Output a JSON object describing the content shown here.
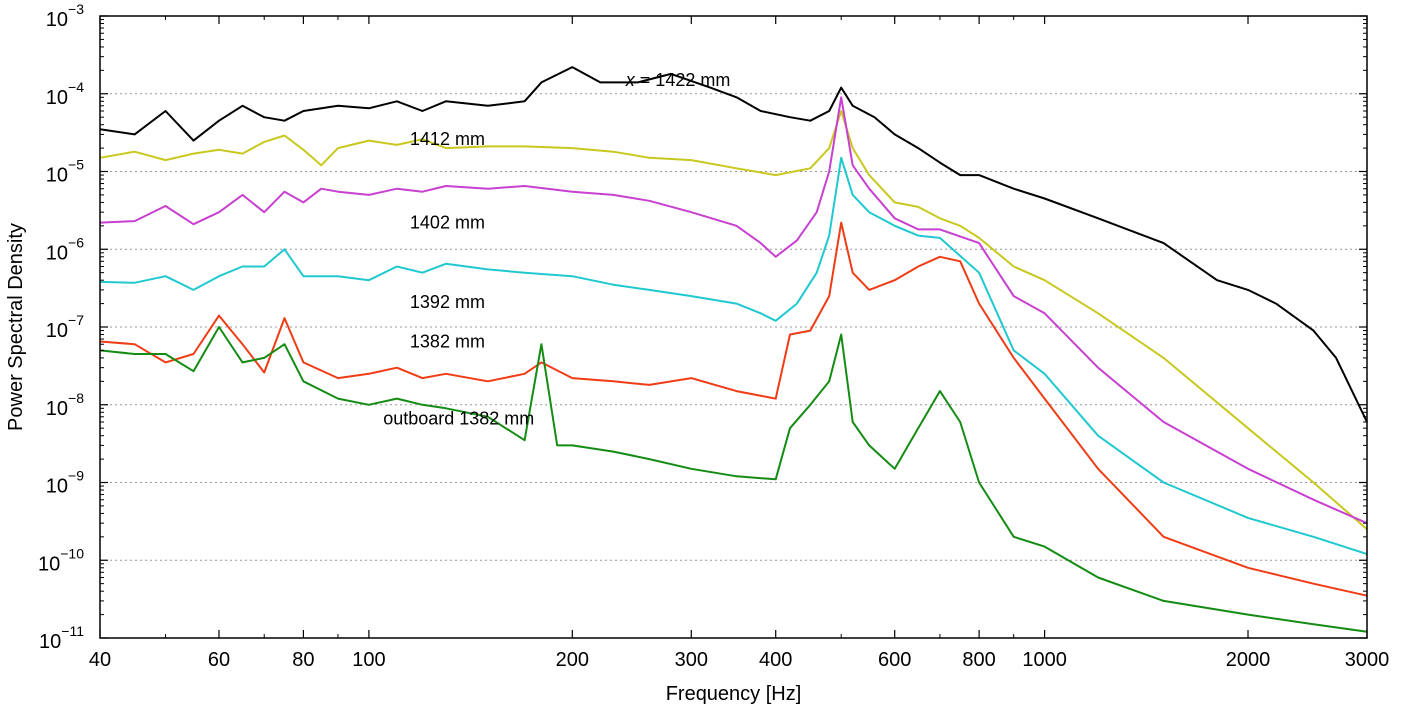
{
  "chart_data": {
    "type": "line",
    "title": "",
    "xlabel": "Frequency [Hz]",
    "ylabel": "Power Spectral Density",
    "xscale": "log",
    "yscale": "log",
    "xlim": [
      40,
      3000
    ],
    "ylim": [
      1e-11,
      0.001
    ],
    "grid": "horizontal dotted at each decade",
    "x_ticks": [
      {
        "value": 40,
        "label": "40"
      },
      {
        "value": 60,
        "label": "60"
      },
      {
        "value": 80,
        "label": "80"
      },
      {
        "value": 100,
        "label": "100"
      },
      {
        "value": 200,
        "label": "200"
      },
      {
        "value": 300,
        "label": "300"
      },
      {
        "value": 400,
        "label": "400"
      },
      {
        "value": 600,
        "label": "600"
      },
      {
        "value": 800,
        "label": "800"
      },
      {
        "value": 1000,
        "label": "1000"
      },
      {
        "value": 2000,
        "label": "2000"
      },
      {
        "value": 3000,
        "label": "3000"
      }
    ],
    "y_ticks": [
      {
        "exp": -3,
        "base": "10",
        "sup": "−3"
      },
      {
        "exp": -4,
        "base": "10",
        "sup": "−4"
      },
      {
        "exp": -5,
        "base": "10",
        "sup": "−5"
      },
      {
        "exp": -6,
        "base": "10",
        "sup": "−6"
      },
      {
        "exp": -7,
        "base": "10",
        "sup": "−7"
      },
      {
        "exp": -8,
        "base": "10",
        "sup": "−8"
      },
      {
        "exp": -9,
        "base": "10",
        "sup": "−9"
      },
      {
        "exp": -10,
        "base": "10",
        "sup": "−10"
      },
      {
        "exp": -11,
        "base": "10",
        "sup": "−11"
      }
    ],
    "series": [
      {
        "name": "x = 1422 mm",
        "label_italic": "x",
        "label_rest": " = 1422 mm",
        "label_anchor": {
          "x": 240,
          "y": 0.00015
        },
        "color": "#000000",
        "points": [
          [
            40,
            3.5e-05
          ],
          [
            45,
            3e-05
          ],
          [
            50,
            6e-05
          ],
          [
            55,
            2.5e-05
          ],
          [
            60,
            4.5e-05
          ],
          [
            65,
            7e-05
          ],
          [
            70,
            5e-05
          ],
          [
            75,
            4.5e-05
          ],
          [
            80,
            6e-05
          ],
          [
            90,
            7e-05
          ],
          [
            100,
            6.5e-05
          ],
          [
            110,
            8e-05
          ],
          [
            120,
            6e-05
          ],
          [
            130,
            8e-05
          ],
          [
            150,
            7e-05
          ],
          [
            170,
            8e-05
          ],
          [
            180,
            0.00014
          ],
          [
            200,
            0.00022
          ],
          [
            220,
            0.00014
          ],
          [
            250,
            0.00014
          ],
          [
            280,
            0.00018
          ],
          [
            320,
            0.00012
          ],
          [
            350,
            9e-05
          ],
          [
            380,
            6e-05
          ],
          [
            420,
            5e-05
          ],
          [
            450,
            4.5e-05
          ],
          [
            480,
            6e-05
          ],
          [
            500,
            0.00012
          ],
          [
            520,
            7e-05
          ],
          [
            560,
            5e-05
          ],
          [
            600,
            3e-05
          ],
          [
            650,
            2e-05
          ],
          [
            700,
            1.3e-05
          ],
          [
            750,
            9e-06
          ],
          [
            800,
            9e-06
          ],
          [
            900,
            6e-06
          ],
          [
            1000,
            4.5e-06
          ],
          [
            1200,
            2.5e-06
          ],
          [
            1500,
            1.2e-06
          ],
          [
            1800,
            4e-07
          ],
          [
            2000,
            3e-07
          ],
          [
            2200,
            2e-07
          ],
          [
            2500,
            9e-08
          ],
          [
            2700,
            4e-08
          ],
          [
            3000,
            6e-09
          ]
        ]
      },
      {
        "name": "1412 mm",
        "label_anchor": {
          "x": 115,
          "y": 2.6e-05
        },
        "color": "#c8c81e",
        "points": [
          [
            40,
            1.5e-05
          ],
          [
            45,
            1.8e-05
          ],
          [
            50,
            1.4e-05
          ],
          [
            55,
            1.7e-05
          ],
          [
            60,
            1.9e-05
          ],
          [
            65,
            1.7e-05
          ],
          [
            70,
            2.4e-05
          ],
          [
            75,
            2.9e-05
          ],
          [
            80,
            1.9e-05
          ],
          [
            85,
            1.2e-05
          ],
          [
            90,
            2e-05
          ],
          [
            100,
            2.5e-05
          ],
          [
            110,
            2.2e-05
          ],
          [
            120,
            2.6e-05
          ],
          [
            130,
            2e-05
          ],
          [
            150,
            2.1e-05
          ],
          [
            170,
            2.1e-05
          ],
          [
            200,
            2e-05
          ],
          [
            230,
            1.8e-05
          ],
          [
            260,
            1.5e-05
          ],
          [
            300,
            1.4e-05
          ],
          [
            350,
            1.1e-05
          ],
          [
            400,
            9e-06
          ],
          [
            450,
            1.1e-05
          ],
          [
            480,
            2e-05
          ],
          [
            500,
            6e-05
          ],
          [
            520,
            2e-05
          ],
          [
            550,
            9e-06
          ],
          [
            600,
            4e-06
          ],
          [
            650,
            3.5e-06
          ],
          [
            700,
            2.5e-06
          ],
          [
            750,
            2e-06
          ],
          [
            800,
            1.4e-06
          ],
          [
            900,
            6e-07
          ],
          [
            1000,
            4e-07
          ],
          [
            1200,
            1.5e-07
          ],
          [
            1500,
            4e-08
          ],
          [
            2000,
            5e-09
          ],
          [
            2500,
            1e-09
          ],
          [
            3000,
            2.5e-10
          ]
        ]
      },
      {
        "name": "1402 mm",
        "label_anchor": {
          "x": 115,
          "y": 2.2e-06
        },
        "color": "#c840d0",
        "points": [
          [
            40,
            2.2e-06
          ],
          [
            45,
            2.3e-06
          ],
          [
            50,
            3.6e-06
          ],
          [
            55,
            2.1e-06
          ],
          [
            60,
            3e-06
          ],
          [
            65,
            5e-06
          ],
          [
            70,
            3e-06
          ],
          [
            75,
            5.5e-06
          ],
          [
            80,
            4e-06
          ],
          [
            85,
            6e-06
          ],
          [
            90,
            5.5e-06
          ],
          [
            100,
            5e-06
          ],
          [
            110,
            6e-06
          ],
          [
            120,
            5.5e-06
          ],
          [
            130,
            6.5e-06
          ],
          [
            150,
            6e-06
          ],
          [
            170,
            6.5e-06
          ],
          [
            200,
            5.5e-06
          ],
          [
            230,
            5e-06
          ],
          [
            260,
            4.2e-06
          ],
          [
            300,
            3e-06
          ],
          [
            350,
            2e-06
          ],
          [
            380,
            1.2e-06
          ],
          [
            400,
            8e-07
          ],
          [
            430,
            1.3e-06
          ],
          [
            460,
            3e-06
          ],
          [
            480,
            1e-05
          ],
          [
            500,
            9e-05
          ],
          [
            520,
            1.2e-05
          ],
          [
            550,
            6e-06
          ],
          [
            600,
            2.5e-06
          ],
          [
            650,
            1.8e-06
          ],
          [
            700,
            1.8e-06
          ],
          [
            800,
            1.2e-06
          ],
          [
            900,
            2.5e-07
          ],
          [
            1000,
            1.5e-07
          ],
          [
            1200,
            3e-08
          ],
          [
            1500,
            6e-09
          ],
          [
            2000,
            1.5e-09
          ],
          [
            2500,
            6e-10
          ],
          [
            3000,
            3e-10
          ]
        ]
      },
      {
        "name": "1392 mm",
        "label_anchor": {
          "x": 115,
          "y": 2.1e-07
        },
        "color": "#20c8d0",
        "points": [
          [
            40,
            3.8e-07
          ],
          [
            45,
            3.7e-07
          ],
          [
            50,
            4.5e-07
          ],
          [
            55,
            3e-07
          ],
          [
            60,
            4.5e-07
          ],
          [
            65,
            6e-07
          ],
          [
            70,
            6e-07
          ],
          [
            75,
            1e-06
          ],
          [
            80,
            4.5e-07
          ],
          [
            90,
            4.5e-07
          ],
          [
            100,
            4e-07
          ],
          [
            110,
            6e-07
          ],
          [
            120,
            5e-07
          ],
          [
            130,
            6.5e-07
          ],
          [
            150,
            5.5e-07
          ],
          [
            170,
            5e-07
          ],
          [
            200,
            4.5e-07
          ],
          [
            230,
            3.5e-07
          ],
          [
            260,
            3e-07
          ],
          [
            300,
            2.5e-07
          ],
          [
            350,
            2e-07
          ],
          [
            380,
            1.5e-07
          ],
          [
            400,
            1.2e-07
          ],
          [
            430,
            2e-07
          ],
          [
            460,
            5e-07
          ],
          [
            480,
            1.5e-06
          ],
          [
            500,
            1.5e-05
          ],
          [
            520,
            5e-06
          ],
          [
            550,
            3e-06
          ],
          [
            600,
            2e-06
          ],
          [
            650,
            1.5e-06
          ],
          [
            700,
            1.4e-06
          ],
          [
            800,
            5e-07
          ],
          [
            900,
            5e-08
          ],
          [
            1000,
            2.5e-08
          ],
          [
            1200,
            4e-09
          ],
          [
            1500,
            1e-09
          ],
          [
            2000,
            3.5e-10
          ],
          [
            2500,
            2e-10
          ],
          [
            3000,
            1.2e-10
          ]
        ]
      },
      {
        "name": "1382 mm",
        "label_anchor": {
          "x": 115,
          "y": 6.5e-08
        },
        "color": "#f03c14",
        "points": [
          [
            40,
            6.5e-08
          ],
          [
            45,
            6e-08
          ],
          [
            50,
            3.5e-08
          ],
          [
            55,
            4.5e-08
          ],
          [
            60,
            1.4e-07
          ],
          [
            65,
            6e-08
          ],
          [
            70,
            2.6e-08
          ],
          [
            75,
            1.3e-07
          ],
          [
            80,
            3.5e-08
          ],
          [
            90,
            2.2e-08
          ],
          [
            100,
            2.5e-08
          ],
          [
            110,
            3e-08
          ],
          [
            120,
            2.2e-08
          ],
          [
            130,
            2.5e-08
          ],
          [
            150,
            2e-08
          ],
          [
            170,
            2.5e-08
          ],
          [
            180,
            3.5e-08
          ],
          [
            200,
            2.2e-08
          ],
          [
            230,
            2e-08
          ],
          [
            260,
            1.8e-08
          ],
          [
            300,
            2.2e-08
          ],
          [
            350,
            1.5e-08
          ],
          [
            400,
            1.2e-08
          ],
          [
            420,
            8e-08
          ],
          [
            450,
            9e-08
          ],
          [
            480,
            2.5e-07
          ],
          [
            500,
            2.2e-06
          ],
          [
            520,
            5e-07
          ],
          [
            550,
            3e-07
          ],
          [
            600,
            4e-07
          ],
          [
            650,
            6e-07
          ],
          [
            700,
            8e-07
          ],
          [
            750,
            7e-07
          ],
          [
            800,
            2e-07
          ],
          [
            900,
            4e-08
          ],
          [
            1000,
            1.2e-08
          ],
          [
            1200,
            1.5e-09
          ],
          [
            1500,
            2e-10
          ],
          [
            2000,
            8e-11
          ],
          [
            2500,
            5e-11
          ],
          [
            3000,
            3.5e-11
          ]
        ]
      },
      {
        "name": "outboard 1382 mm",
        "label_anchor": {
          "x": 105,
          "y": 6.7e-09
        },
        "color": "#148c14",
        "points": [
          [
            40,
            5e-08
          ],
          [
            45,
            4.5e-08
          ],
          [
            50,
            4.5e-08
          ],
          [
            55,
            2.7e-08
          ],
          [
            60,
            1e-07
          ],
          [
            65,
            3.5e-08
          ],
          [
            70,
            4e-08
          ],
          [
            75,
            6e-08
          ],
          [
            80,
            2e-08
          ],
          [
            90,
            1.2e-08
          ],
          [
            100,
            1e-08
          ],
          [
            110,
            1.2e-08
          ],
          [
            120,
            1e-08
          ],
          [
            130,
            9e-09
          ],
          [
            150,
            7e-09
          ],
          [
            170,
            3.5e-09
          ],
          [
            180,
            6e-08
          ],
          [
            190,
            3e-09
          ],
          [
            200,
            3e-09
          ],
          [
            230,
            2.5e-09
          ],
          [
            260,
            2e-09
          ],
          [
            300,
            1.5e-09
          ],
          [
            350,
            1.2e-09
          ],
          [
            400,
            1.1e-09
          ],
          [
            420,
            5e-09
          ],
          [
            450,
            1e-08
          ],
          [
            480,
            2e-08
          ],
          [
            500,
            8e-08
          ],
          [
            520,
            6e-09
          ],
          [
            550,
            3e-09
          ],
          [
            600,
            1.5e-09
          ],
          [
            650,
            5e-09
          ],
          [
            700,
            1.5e-08
          ],
          [
            750,
            6e-09
          ],
          [
            800,
            1e-09
          ],
          [
            900,
            2e-10
          ],
          [
            1000,
            1.5e-10
          ],
          [
            1200,
            6e-11
          ],
          [
            1500,
            3e-11
          ],
          [
            2000,
            2e-11
          ],
          [
            2500,
            1.5e-11
          ],
          [
            3000,
            1.2e-11
          ]
        ]
      }
    ]
  }
}
